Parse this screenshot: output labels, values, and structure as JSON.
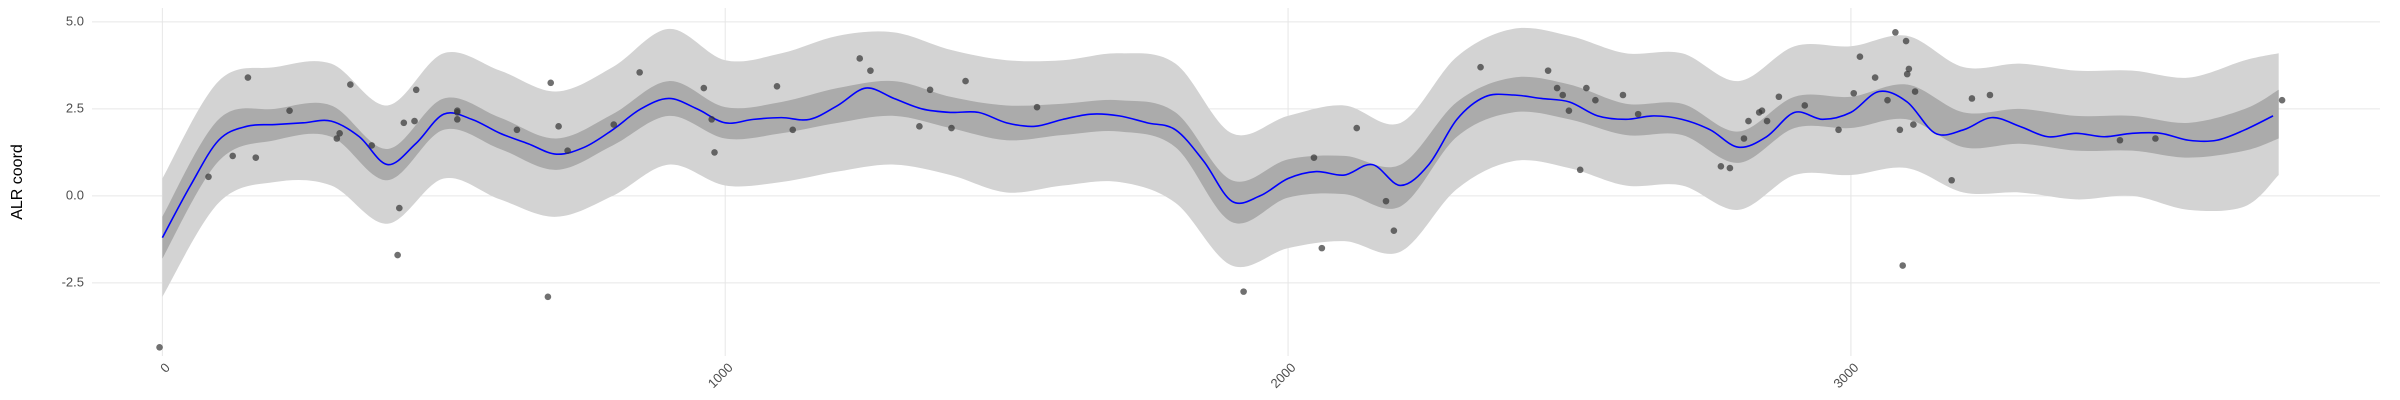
{
  "chart_data": {
    "type": "line",
    "y_label": "ALR coord",
    "xlim": [
      -125,
      3940
    ],
    "ylim": [
      -4.6,
      5.4
    ],
    "xticks": [
      0,
      1000,
      2000,
      3000
    ],
    "yticks": [
      -2.5,
      {
        "value": 0,
        "label": "0.0"
      },
      2.5,
      {
        "value": 5,
        "label": "5.0"
      }
    ],
    "grid": true,
    "band_x": [
      0,
      100,
      200,
      300,
      400,
      500,
      600,
      700,
      800,
      900,
      1000,
      1100,
      1200,
      1300,
      1400,
      1500,
      1600,
      1700,
      1800,
      1900,
      2000,
      2100,
      2200,
      2300,
      2400,
      2500,
      2600,
      2700,
      2800,
      2900,
      3000,
      3100,
      3200,
      3300,
      3400,
      3500,
      3600,
      3700,
      3760
    ],
    "bands": [
      {
        "color": "#d3d3d3",
        "lower": [
          -2.9,
          -0.2,
          0.4,
          0.3,
          -0.8,
          0.5,
          -0.1,
          -0.6,
          0.0,
          0.9,
          0.3,
          0.4,
          0.7,
          0.9,
          0.6,
          0.1,
          0.3,
          0.4,
          -0.2,
          -2.0,
          -1.5,
          -1.3,
          -1.6,
          0.2,
          1.0,
          0.8,
          0.3,
          0.3,
          -0.4,
          0.6,
          0.6,
          0.8,
          0.1,
          0.1,
          -0.1,
          0.0,
          -0.4,
          -0.3,
          0.6
        ],
        "upper": [
          0.5,
          3.3,
          3.7,
          3.8,
          2.6,
          4.1,
          3.6,
          3.0,
          3.7,
          4.8,
          3.9,
          4.1,
          4.6,
          4.7,
          4.2,
          3.9,
          3.9,
          4.1,
          3.8,
          1.8,
          2.3,
          2.6,
          2.1,
          4.0,
          4.8,
          4.6,
          4.1,
          4.1,
          3.3,
          4.3,
          4.3,
          4.6,
          3.7,
          3.8,
          3.6,
          3.6,
          3.4,
          3.9,
          4.1
        ]
      },
      {
        "color": "#ababab",
        "lower": [
          -1.8,
          1.0,
          1.6,
          1.7,
          0.45,
          1.9,
          1.35,
          0.75,
          1.45,
          2.3,
          1.65,
          1.8,
          2.1,
          2.3,
          1.95,
          1.6,
          1.75,
          1.85,
          1.4,
          -0.75,
          -0.05,
          0.05,
          -0.3,
          1.7,
          2.4,
          2.2,
          1.75,
          1.75,
          0.95,
          1.95,
          1.95,
          2.2,
          1.4,
          1.5,
          1.3,
          1.3,
          1.1,
          1.3,
          1.65
        ],
        "upper": [
          -0.6,
          2.2,
          2.5,
          2.6,
          1.35,
          2.8,
          2.25,
          1.65,
          2.35,
          3.3,
          2.55,
          2.7,
          3.1,
          3.3,
          2.85,
          2.6,
          2.65,
          2.75,
          2.4,
          0.45,
          1.05,
          1.15,
          0.9,
          2.7,
          3.4,
          3.2,
          2.65,
          2.65,
          1.85,
          2.85,
          2.85,
          3.2,
          2.4,
          2.5,
          2.3,
          2.3,
          2.1,
          2.5,
          3.05
        ]
      }
    ],
    "line": {
      "color": "#0000ff",
      "x": [
        0,
        50,
        100,
        150,
        200,
        250,
        300,
        350,
        400,
        450,
        500,
        550,
        600,
        650,
        700,
        750,
        800,
        850,
        900,
        950,
        1000,
        1050,
        1100,
        1150,
        1200,
        1250,
        1300,
        1350,
        1400,
        1450,
        1500,
        1550,
        1600,
        1650,
        1700,
        1750,
        1800,
        1850,
        1900,
        1950,
        2000,
        2050,
        2100,
        2150,
        2200,
        2250,
        2300,
        2350,
        2400,
        2450,
        2500,
        2550,
        2600,
        2650,
        2700,
        2750,
        2800,
        2850,
        2900,
        2950,
        3000,
        3050,
        3100,
        3150,
        3200,
        3250,
        3300,
        3350,
        3400,
        3450,
        3500,
        3550,
        3600,
        3650,
        3700,
        3750
      ],
      "values": [
        -1.2,
        0.3,
        1.6,
        2.0,
        2.05,
        2.1,
        2.15,
        1.7,
        0.9,
        1.5,
        2.35,
        2.2,
        1.8,
        1.5,
        1.2,
        1.4,
        1.9,
        2.5,
        2.8,
        2.5,
        2.1,
        2.2,
        2.25,
        2.2,
        2.6,
        3.1,
        2.8,
        2.5,
        2.4,
        2.4,
        2.1,
        2.0,
        2.2,
        2.35,
        2.3,
        2.1,
        1.9,
        1.0,
        -0.15,
        0.0,
        0.5,
        0.7,
        0.6,
        0.9,
        0.3,
        0.9,
        2.2,
        2.85,
        2.9,
        2.8,
        2.7,
        2.3,
        2.2,
        2.3,
        2.2,
        1.9,
        1.4,
        1.7,
        2.4,
        2.2,
        2.4,
        3.0,
        2.7,
        1.8,
        1.9,
        2.25,
        2.0,
        1.7,
        1.8,
        1.7,
        1.8,
        1.8,
        1.6,
        1.6,
        1.9,
        2.3
      ]
    },
    "points": {
      "color": "#333333",
      "x": [
        -5,
        82,
        125,
        152,
        166,
        226,
        310,
        315,
        334,
        372,
        418,
        421,
        429,
        448,
        451,
        524,
        524,
        524,
        630,
        685,
        690,
        704,
        720,
        802,
        848,
        962,
        976,
        981,
        1092,
        1120,
        1239,
        1258,
        1345,
        1364,
        1402,
        1427,
        1554,
        1921,
        2046,
        2060,
        2122,
        2174,
        2188,
        2342,
        2462,
        2478,
        2488,
        2499,
        2519,
        2530,
        2546,
        2595,
        2622,
        2769,
        2785,
        2810,
        2818,
        2837,
        2842,
        2851,
        2872,
        2918,
        2978,
        3005,
        3016,
        3043,
        3065,
        3079,
        3087,
        3092,
        3098,
        3100,
        3103,
        3111,
        3114,
        3179,
        3215,
        3247,
        3478,
        3541,
        3766
      ],
      "y": [
        -4.35,
        0.55,
        1.15,
        3.4,
        1.1,
        2.45,
        1.65,
        1.8,
        3.2,
        1.45,
        -1.7,
        -0.35,
        2.1,
        2.15,
        3.05,
        2.45,
        2.4,
        2.2,
        1.9,
        -2.9,
        3.25,
        2.0,
        1.3,
        2.05,
        3.55,
        3.1,
        2.2,
        1.25,
        3.15,
        1.9,
        3.95,
        3.6,
        2.0,
        3.05,
        1.95,
        3.3,
        2.55,
        -2.75,
        1.1,
        -1.5,
        1.95,
        -0.15,
        -1.0,
        3.7,
        3.6,
        3.1,
        2.9,
        2.45,
        0.75,
        3.1,
        2.75,
        2.9,
        2.35,
        0.85,
        0.8,
        1.65,
        2.15,
        2.4,
        2.45,
        2.15,
        2.85,
        2.6,
        1.9,
        2.95,
        4.0,
        3.4,
        2.75,
        4.7,
        1.9,
        -2.0,
        4.45,
        3.5,
        3.65,
        2.05,
        3.0,
        0.45,
        2.8,
        2.9,
        1.6,
        1.65,
        2.75
      ]
    }
  }
}
